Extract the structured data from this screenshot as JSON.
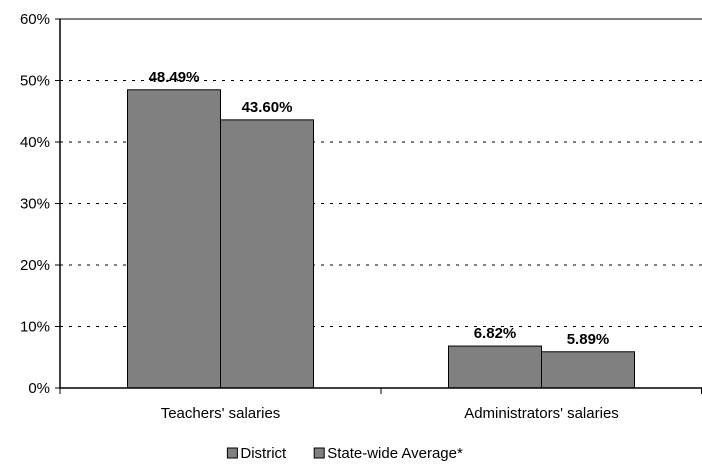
{
  "chart_data": {
    "type": "bar",
    "title": "",
    "xlabel": "",
    "ylabel": "",
    "categories": [
      "Teachers' salaries",
      "Administrators' salaries"
    ],
    "series": [
      {
        "name": "District",
        "values": [
          48.49,
          6.82
        ],
        "labels": [
          "48.49%",
          "6.82%"
        ],
        "color": "#808080"
      },
      {
        "name": "State-wide Average*",
        "values": [
          43.6,
          5.89
        ],
        "labels": [
          "43.60%",
          "5.89%"
        ],
        "color": "#808080"
      }
    ],
    "ylim": [
      0,
      60
    ],
    "yticks": [
      0,
      10,
      20,
      30,
      40,
      50,
      60
    ],
    "ytick_labels": [
      "0%",
      "10%",
      "20%",
      "30%",
      "40%",
      "50%",
      "60%"
    ],
    "grid": "dashed-horizontal",
    "legend": "bottom-center"
  }
}
